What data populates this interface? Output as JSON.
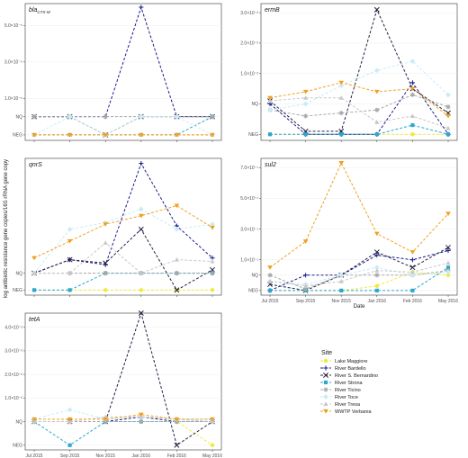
{
  "figure": {
    "ylabel": "log antibiotic resistance gene copies/16S rRNA gene copy",
    "xlabel": "Date",
    "legend_title": "Site",
    "x_categories": [
      "Jul 2015",
      "Sep 2015",
      "Nov 2015",
      "Jan 2016",
      "Feb 2016",
      "May 2016"
    ],
    "sites": [
      {
        "name": "Lake Maggiore",
        "color": "#f0ea3c",
        "icon": "circle"
      },
      {
        "name": "River Bardello",
        "color": "#1a1a8c",
        "icon": "plus"
      },
      {
        "name": "River S. Bernardino",
        "color": "#222244",
        "icon": "cross"
      },
      {
        "name": "River Strona",
        "color": "#2aa8d0",
        "icon": "square"
      },
      {
        "name": "River Ticino",
        "color": "#a8a8a8",
        "icon": "asterisk"
      },
      {
        "name": "River Toce",
        "color": "#c8ecf8",
        "icon": "diamond"
      },
      {
        "name": "River Tresa",
        "color": "#c8c8c8",
        "icon": "triangle-up"
      },
      {
        "name": "WWTP Verbania",
        "color": "#f0a020",
        "icon": "triangle-down"
      }
    ]
  },
  "chart_data": [
    {
      "type": "line",
      "title": "bla",
      "title_sub": "CTX-M",
      "y_ticks": [
        "NEG",
        "NQ",
        "1.0×10⁻⁵",
        "3.0×10⁻⁵",
        "5.0×10⁻⁵"
      ],
      "y_tick_values": [
        -1,
        0,
        1,
        3,
        5
      ],
      "ylim": [
        -1.3,
        6.2
      ],
      "series": [
        {
          "site": "Lake Maggiore",
          "values": [
            -1,
            -1,
            -1,
            -1,
            -1,
            -1
          ]
        },
        {
          "site": "River Bardello",
          "values": [
            0,
            0,
            0,
            6,
            0,
            0
          ]
        },
        {
          "site": "River S. Bernardino",
          "values": [
            0,
            0,
            -1,
            0,
            0,
            0
          ]
        },
        {
          "site": "River Strona",
          "values": [
            -1,
            -1,
            -1,
            -1,
            -1,
            0
          ]
        },
        {
          "site": "River Ticino",
          "values": [
            0,
            0,
            0,
            0,
            0,
            0
          ]
        },
        {
          "site": "River Toce",
          "values": [
            -1,
            0,
            -1,
            0,
            0,
            -1
          ]
        },
        {
          "site": "River Tresa",
          "values": [
            -1,
            -1,
            -1,
            -1,
            -1,
            -1
          ]
        },
        {
          "site": "WWTP Verbania",
          "values": [
            -1,
            -1,
            -1,
            -1,
            -1,
            -1
          ]
        }
      ]
    },
    {
      "type": "line",
      "title": "ermB",
      "title_sub": "",
      "y_ticks": [
        "NEG",
        "NQ",
        "1.0×10⁻²",
        "2.0×10⁻²",
        "3.0×10⁻²"
      ],
      "y_tick_values": [
        -1,
        0,
        1,
        2,
        3
      ],
      "ylim": [
        -1.2,
        3.3
      ],
      "series": [
        {
          "site": "Lake Maggiore",
          "values": [
            -1,
            -1,
            -1,
            -1,
            -1,
            -1
          ]
        },
        {
          "site": "River Bardello",
          "values": [
            0,
            -1,
            -1,
            -1,
            0.7,
            -1
          ]
        },
        {
          "site": "River S. Bernardino",
          "values": [
            0.1,
            -0.9,
            -0.9,
            3.1,
            0.5,
            -0.3
          ]
        },
        {
          "site": "River Strona",
          "values": [
            -1,
            -1,
            -1,
            -1,
            -0.7,
            -1
          ]
        },
        {
          "site": "River Ticino",
          "values": [
            -0.2,
            -0.4,
            -0.3,
            -0.2,
            0.3,
            -0.1
          ]
        },
        {
          "site": "River Toce",
          "values": [
            -0.2,
            0,
            0.6,
            1.1,
            1.4,
            0.3
          ]
        },
        {
          "site": "River Tresa",
          "values": [
            0.1,
            0.2,
            0.2,
            -0.6,
            -0.4,
            -0.8
          ]
        },
        {
          "site": "WWTP Verbania",
          "values": [
            0.2,
            0.4,
            0.7,
            0.4,
            0.5,
            -0.4
          ]
        }
      ]
    },
    {
      "type": "line",
      "title": "qnrS",
      "title_sub": "",
      "y_ticks": [
        "NEG",
        "NQ"
      ],
      "y_tick_values": [
        -1,
        0
      ],
      "ylim": [
        -1.3,
        6.8
      ],
      "series": [
        {
          "site": "Lake Maggiore",
          "values": [
            -1,
            -1,
            -1,
            -1,
            -1,
            -1
          ]
        },
        {
          "site": "River Bardello",
          "values": [
            0,
            0.8,
            0.5,
            6.5,
            2.8,
            0.9
          ]
        },
        {
          "site": "River S. Bernardino",
          "values": [
            0,
            0.8,
            0.6,
            2.6,
            -1,
            0.2
          ]
        },
        {
          "site": "River Strona",
          "values": [
            -1,
            -1,
            0,
            0,
            0,
            0
          ]
        },
        {
          "site": "River Ticino",
          "values": [
            0,
            0,
            0,
            0,
            0,
            0
          ]
        },
        {
          "site": "River Toce",
          "values": [
            0,
            2.6,
            3.0,
            3.8,
            2.6,
            2.9
          ]
        },
        {
          "site": "River Tresa",
          "values": [
            0,
            0,
            1.8,
            0,
            0.8,
            0.7
          ]
        },
        {
          "site": "WWTP Verbania",
          "values": [
            0.9,
            1.9,
            2.9,
            3.4,
            4.0,
            2.7
          ]
        }
      ]
    },
    {
      "type": "line",
      "title": "sul2",
      "title_sub": "",
      "y_ticks": [
        "NEG",
        "NQ",
        "1.0×10⁻¹",
        "3.0×10⁻¹",
        "5.0×10⁻¹",
        "7.0×10⁻¹"
      ],
      "y_tick_values": [
        -1,
        0,
        1,
        3,
        5,
        7
      ],
      "ylim": [
        -1.3,
        7.6
      ],
      "series": [
        {
          "site": "Lake Maggiore",
          "values": [
            -1,
            -1,
            -1,
            -0.7,
            0.2,
            0
          ]
        },
        {
          "site": "River Bardello",
          "values": [
            -1,
            0,
            0,
            1.3,
            1.0,
            1.6
          ]
        },
        {
          "site": "River S. Bernardino",
          "values": [
            -0.6,
            -1,
            0,
            1.5,
            0.5,
            1.8
          ]
        },
        {
          "site": "River Strona",
          "values": [
            -1,
            -1,
            -1,
            -1,
            -1,
            0.5
          ]
        },
        {
          "site": "River Ticino",
          "values": [
            0,
            -0.9,
            0,
            0,
            0,
            0.3
          ]
        },
        {
          "site": "River Toce",
          "values": [
            -0.4,
            -0.6,
            0,
            0.5,
            0,
            0.2
          ]
        },
        {
          "site": "River Tresa",
          "values": [
            -0.4,
            -0.7,
            -0.4,
            0.3,
            0.2,
            0.8
          ]
        },
        {
          "site": "WWTP Verbania",
          "values": [
            0.5,
            2.2,
            7.3,
            2.7,
            1.5,
            4.0
          ]
        }
      ]
    },
    {
      "type": "line",
      "title": "tetA",
      "title_sub": "",
      "y_ticks": [
        "NEG",
        "NQ",
        "1.0×10⁻²",
        "2.0×10⁻²",
        "3.0×10⁻²",
        "4.0×10⁻²"
      ],
      "y_tick_values": [
        -1,
        0,
        1,
        2,
        3,
        4
      ],
      "ylim": [
        -1.2,
        4.6
      ],
      "series": [
        {
          "site": "Lake Maggiore",
          "values": [
            0,
            0,
            0,
            0,
            0,
            -1
          ]
        },
        {
          "site": "River Bardello",
          "values": [
            0,
            0,
            0,
            0.2,
            0,
            0
          ]
        },
        {
          "site": "River S. Bernardino",
          "values": [
            0,
            0,
            0,
            4.6,
            -1,
            0
          ]
        },
        {
          "site": "River Strona",
          "values": [
            0,
            -1,
            0,
            0,
            0,
            0
          ]
        },
        {
          "site": "River Ticino",
          "values": [
            0,
            0,
            0,
            0,
            0,
            0
          ]
        },
        {
          "site": "River Toce",
          "values": [
            0.1,
            0.5,
            0.1,
            0.2,
            0.1,
            0.1
          ]
        },
        {
          "site": "River Tresa",
          "values": [
            0,
            0,
            0.2,
            0.2,
            0.1,
            0
          ]
        },
        {
          "site": "WWTP Verbania",
          "values": [
            0.1,
            0.1,
            0.1,
            0.3,
            0.1,
            0.1
          ]
        }
      ]
    }
  ]
}
